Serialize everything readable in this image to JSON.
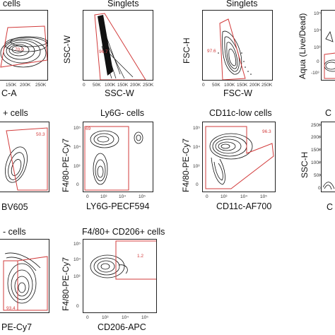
{
  "colors": {
    "gate": "#d23b3b",
    "ink": "#111111"
  },
  "panels": [
    {
      "id": "p1",
      "title": "cells",
      "xlabel": "C-A",
      "ylabel": "",
      "xticks": [
        "150K",
        "200K",
        "250K"
      ],
      "yticks": [],
      "gate": "70.0"
    },
    {
      "id": "p2",
      "title": "Singlets",
      "xlabel": "SSC-W",
      "ylabel": "SSC-W",
      "xticks": [
        "0",
        "50K",
        "100K",
        "150K",
        "200K",
        "250K"
      ],
      "yticks": [],
      "gate": "96.7"
    },
    {
      "id": "p3",
      "title": "Singlets",
      "xlabel": "FSC-W",
      "ylabel": "FSC-H",
      "xticks": [
        "0",
        "50K",
        "100K",
        "150K",
        "200K",
        "250K"
      ],
      "yticks": [],
      "gate": "97.6"
    },
    {
      "id": "p4",
      "title": "",
      "xlabel": "",
      "ylabel": "Aqua (Live/Dead)",
      "xticks": [],
      "yticks": [
        "10⁵",
        "10⁴",
        "10³",
        "0",
        "-10³"
      ],
      "gate": ""
    },
    {
      "id": "p5",
      "title": "+ cells",
      "xlabel": "BV605",
      "ylabel": "",
      "xticks": [],
      "yticks": [],
      "gate": "50.3"
    },
    {
      "id": "p6",
      "title": "Ly6G- cells",
      "xlabel": "LY6G-PECF594",
      "ylabel": "F4/80-PE-Cy7",
      "xticks": [
        "0",
        "10³",
        "10⁴",
        "10⁵"
      ],
      "yticks": [
        "10⁵",
        "10⁴",
        "10³",
        "0"
      ],
      "gate": "69"
    },
    {
      "id": "p7",
      "title": "CD11c-low cells",
      "xlabel": "CD11c-AF700",
      "ylabel": "F4/80-PE-Cy7",
      "xticks": [
        "0",
        "10³",
        "10⁴",
        "10⁵"
      ],
      "yticks": [
        "10⁵",
        "10⁴",
        "10³",
        "0"
      ],
      "gate": "96.3"
    },
    {
      "id": "p8",
      "title": "C",
      "xlabel": "C",
      "ylabel": "SSC-H",
      "xticks": [],
      "yticks": [
        "250K",
        "200K",
        "150K",
        "100K",
        "50K",
        "0"
      ],
      "gate": ""
    },
    {
      "id": "p9",
      "title": "- cells",
      "xlabel": "PE-Cy7",
      "ylabel": "",
      "xticks": [],
      "yticks": [],
      "gate": "93.4"
    },
    {
      "id": "p10",
      "title": "F4/80+ CD206+ cells",
      "xlabel": "CD206-APC",
      "ylabel": "F4/80-PE-Cy7",
      "xticks": [
        "0",
        "10³",
        "10⁴",
        "10⁵"
      ],
      "yticks": [
        "10⁵",
        "10⁴",
        "10³",
        "0"
      ],
      "gate": "1.2"
    }
  ],
  "chart_data": [
    {
      "type": "scatter",
      "title": "Singlets",
      "xlabel": "SSC-W",
      "ylabel": "SSC-W",
      "gates": [
        {
          "value": 96.7
        }
      ]
    },
    {
      "type": "scatter",
      "title": "Singlets",
      "xlabel": "FSC-W",
      "ylabel": "FSC-H",
      "gates": [
        {
          "value": 97.6
        }
      ]
    },
    {
      "type": "scatter",
      "title": "Ly6G- cells",
      "xlabel": "LY6G-PECF594",
      "ylabel": "F4/80-PE-Cy7",
      "gates": [
        {
          "value": 69
        }
      ]
    },
    {
      "type": "scatter",
      "title": "CD11c-low cells",
      "xlabel": "CD11c-AF700",
      "ylabel": "F4/80-PE-Cy7",
      "gates": [
        {
          "value": 96.3
        }
      ]
    },
    {
      "type": "scatter",
      "title": "F4/80+ CD206+ cells",
      "xlabel": "CD206-APC",
      "ylabel": "F4/80-PE-Cy7",
      "gates": [
        {
          "value": 1.2
        }
      ]
    },
    {
      "type": "scatter",
      "title": "",
      "xlabel": "",
      "ylabel": "",
      "gates": [
        {
          "value": 70.0
        },
        {
          "value": 50.3
        },
        {
          "value": 93.4
        }
      ]
    }
  ]
}
